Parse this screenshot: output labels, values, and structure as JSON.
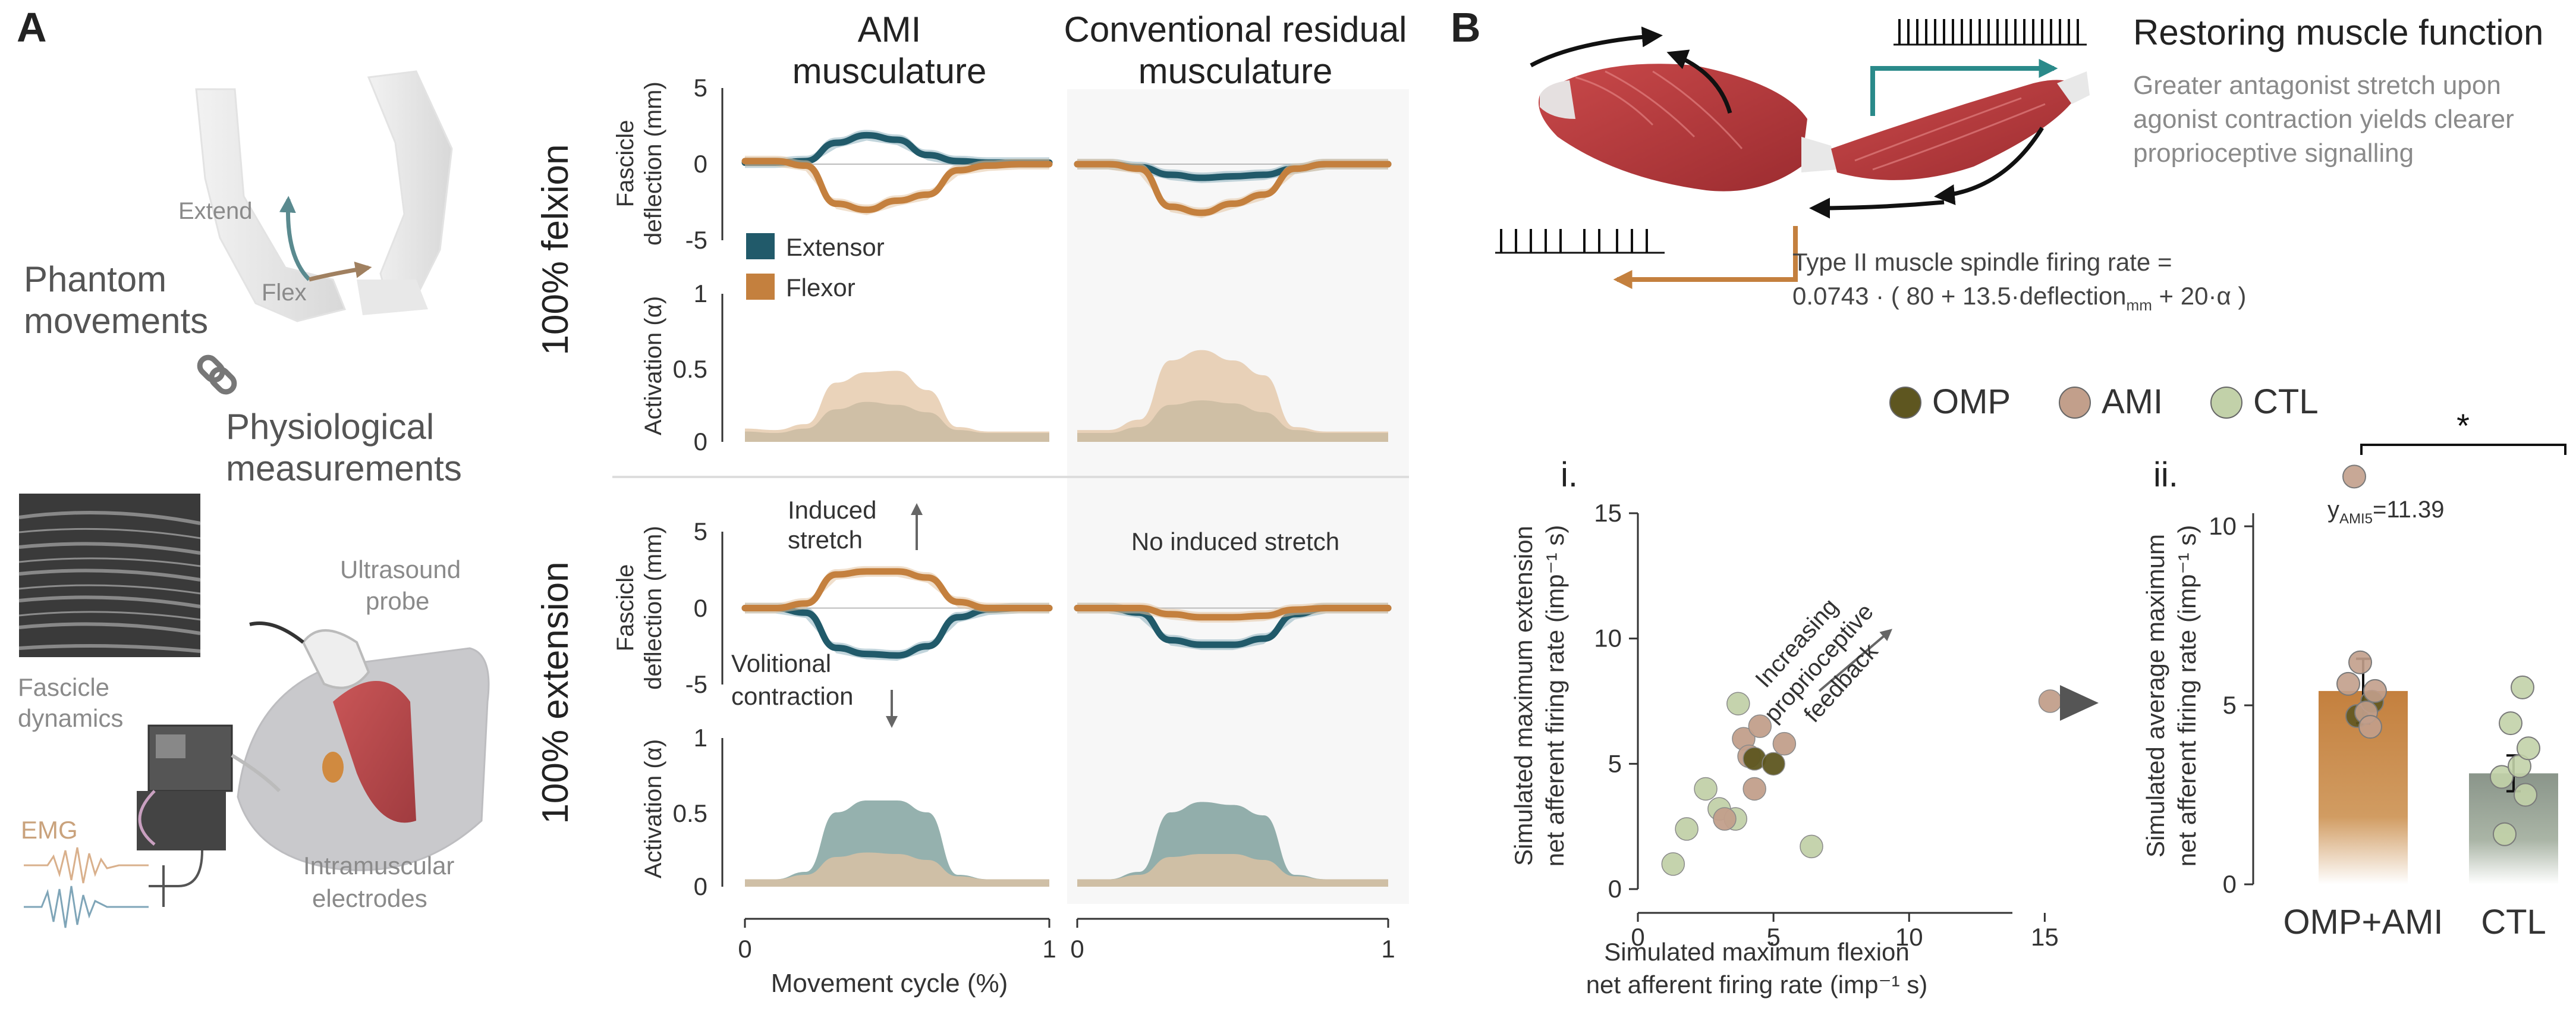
{
  "panel_a": {
    "letter": "A",
    "extend": "Extend",
    "flex": "Flex",
    "phantom": [
      "Phantom",
      "movements"
    ],
    "physio": [
      "Physiological",
      "measurements"
    ],
    "ultrasound_probe": [
      "Ultrasound",
      "probe"
    ],
    "fascicle_dynamics": [
      "Fascicle",
      "dynamics"
    ],
    "emg": "EMG",
    "intramuscular": [
      "Intramuscular",
      "electrodes"
    ],
    "col_ami": [
      "AMI",
      "musculature"
    ],
    "col_conv": [
      "Conventional residual",
      "musculature"
    ],
    "row_flexion": "100% felxion",
    "row_extension": "100% extension",
    "ylabel_deflection": [
      "Fascicle",
      "deflection (mm)"
    ],
    "ylabel_activation": "Activation (α)",
    "legend_extensor": "Extensor",
    "legend_flexor": "Flexor",
    "induced_stretch": [
      "Induced",
      "stretch"
    ],
    "volitional": [
      "Volitional",
      "contraction"
    ],
    "no_induced": "No induced stretch",
    "xlabel": "Movement cycle (%)",
    "x_ticks": [
      "0",
      "1"
    ],
    "defl_ticks": [
      "5",
      "0",
      "-5"
    ],
    "act_ticks": [
      "1",
      "0.5",
      "0"
    ]
  },
  "panel_b": {
    "letter": "B",
    "title": "Restoring muscle function",
    "subtitle": [
      "Greater antagonist stretch upon",
      "agonist contraction yields clearer",
      "proprioceptive signalling"
    ],
    "formula_line1": "Type II muscle spindle firing rate =",
    "formula_line2_a": "0.0743 · ( 80 + 13.5·deflection",
    "formula_sub": "mm",
    "formula_line2_b": " + 20·α )",
    "legend": [
      {
        "label": "OMP",
        "color": "#5e5620"
      },
      {
        "label": "AMI",
        "color": "#c29f8b"
      },
      {
        "label": "CTL",
        "color": "#c2d1a9"
      }
    ],
    "scatter_label": "i.",
    "bar_label": "ii.",
    "arrow_text": [
      "Increasing",
      "proprioceptive",
      "feedback"
    ],
    "scatter_xlabel": [
      "Simulated maximum flexion",
      "net afferent firing rate (imp⁻¹ s)"
    ],
    "scatter_ylabel": [
      "Simulated maximum extension",
      "net afferent firing rate (imp⁻¹ s)"
    ],
    "bar_ylabel": [
      "Simulated average maximum",
      "net afferent firing rate (imp⁻¹ s)"
    ],
    "outlier_label_a": "y",
    "outlier_label_sub": "AMI5",
    "outlier_label_b": "=11.39",
    "significance": "*"
  },
  "colors": {
    "extensor": "#215a6a",
    "flexor": "#c4803e",
    "extensor_band": "#8fb3c0",
    "flexor_band": "#e3c4a3",
    "omp": "#5e5620",
    "ami": "#c29f8b",
    "ctl": "#c2d1a9",
    "muscle": "#b83a3c"
  },
  "chart_data": [
    {
      "type": "line",
      "panel": "AMI musculature, 100% felxion",
      "x": [
        0,
        0.1,
        0.2,
        0.3,
        0.4,
        0.5,
        0.6,
        0.7,
        0.8,
        0.9,
        1.0
      ],
      "series": [
        {
          "name": "Extensor",
          "deflection_mm": [
            0.1,
            0.1,
            0.2,
            1.4,
            1.9,
            1.6,
            0.6,
            0.2,
            0.1,
            0.1,
            0.1
          ],
          "activation": [
            0.07,
            0.06,
            0.09,
            0.22,
            0.27,
            0.25,
            0.2,
            0.08,
            0.06,
            0.06,
            0.06
          ]
        },
        {
          "name": "Flexor",
          "deflection_mm": [
            0.2,
            0.2,
            -0.1,
            -2.6,
            -3.0,
            -2.4,
            -2.0,
            -0.4,
            -0.1,
            0.0,
            0.0
          ],
          "activation": [
            0.09,
            0.08,
            0.12,
            0.4,
            0.47,
            0.48,
            0.35,
            0.1,
            0.07,
            0.07,
            0.07
          ]
        }
      ],
      "ylim_deflection": [
        -5,
        5
      ],
      "ylim_activation": [
        0,
        1
      ]
    },
    {
      "type": "line",
      "panel": "Conventional residual musculature, 100% felxion",
      "x": [
        0,
        0.1,
        0.2,
        0.3,
        0.4,
        0.5,
        0.6,
        0.7,
        0.8,
        0.9,
        1.0
      ],
      "series": [
        {
          "name": "Extensor",
          "deflection_mm": [
            0.0,
            0.0,
            -0.2,
            -0.7,
            -0.9,
            -0.8,
            -0.7,
            -0.3,
            0.0,
            0.0,
            0.0
          ],
          "activation": [
            0.06,
            0.06,
            0.1,
            0.25,
            0.28,
            0.26,
            0.2,
            0.08,
            0.06,
            0.06,
            0.06
          ]
        },
        {
          "name": "Flexor",
          "deflection_mm": [
            0.0,
            0.0,
            -0.3,
            -2.8,
            -3.2,
            -2.6,
            -2.0,
            -0.3,
            0.0,
            0.0,
            0.0
          ],
          "activation": [
            0.08,
            0.08,
            0.15,
            0.55,
            0.62,
            0.55,
            0.45,
            0.1,
            0.07,
            0.07,
            0.07
          ]
        }
      ],
      "ylim_deflection": [
        -5,
        5
      ],
      "ylim_activation": [
        0,
        1
      ]
    },
    {
      "type": "line",
      "panel": "AMI musculature, 100% extension",
      "x": [
        0,
        0.1,
        0.2,
        0.3,
        0.4,
        0.5,
        0.6,
        0.7,
        0.8,
        0.9,
        1.0
      ],
      "series": [
        {
          "name": "Extensor",
          "deflection_mm": [
            0.0,
            0.0,
            -0.3,
            -2.6,
            -3.0,
            -3.1,
            -2.5,
            -0.6,
            -0.1,
            0.0,
            0.0
          ],
          "activation": [
            0.05,
            0.05,
            0.1,
            0.5,
            0.58,
            0.58,
            0.5,
            0.08,
            0.05,
            0.05,
            0.05
          ]
        },
        {
          "name": "Flexor",
          "deflection_mm": [
            0.0,
            0.0,
            0.3,
            2.2,
            2.4,
            2.4,
            2.0,
            0.4,
            0.0,
            0.0,
            0.0
          ],
          "activation": [
            0.05,
            0.05,
            0.08,
            0.2,
            0.23,
            0.22,
            0.18,
            0.07,
            0.05,
            0.05,
            0.05
          ]
        }
      ],
      "ylim_deflection": [
        -5,
        5
      ],
      "ylim_activation": [
        0,
        1
      ]
    },
    {
      "type": "line",
      "panel": "Conventional residual musculature, 100% extension",
      "x": [
        0,
        0.1,
        0.2,
        0.3,
        0.4,
        0.5,
        0.6,
        0.7,
        0.8,
        0.9,
        1.0
      ],
      "series": [
        {
          "name": "Extensor",
          "deflection_mm": [
            0.0,
            0.0,
            -0.3,
            -2.1,
            -2.4,
            -2.4,
            -2.0,
            -0.4,
            0.0,
            0.0,
            0.0
          ],
          "activation": [
            0.05,
            0.05,
            0.1,
            0.5,
            0.57,
            0.55,
            0.48,
            0.08,
            0.05,
            0.05,
            0.05
          ]
        },
        {
          "name": "Flexor",
          "deflection_mm": [
            0.0,
            0.0,
            0.0,
            -0.4,
            -0.6,
            -0.6,
            -0.5,
            -0.1,
            0.0,
            0.0,
            0.0
          ],
          "activation": [
            0.05,
            0.05,
            0.08,
            0.2,
            0.22,
            0.22,
            0.18,
            0.07,
            0.05,
            0.05,
            0.05
          ]
        }
      ],
      "ylim_deflection": [
        -5,
        5
      ],
      "ylim_activation": [
        0,
        1
      ]
    },
    {
      "type": "scatter",
      "panel": "i.",
      "xlabel": "Simulated maximum flexion net afferent firing rate (imp⁻¹ s)",
      "ylabel": "Simulated maximum extension net afferent firing rate (imp⁻¹ s)",
      "xlim": [
        0,
        16
      ],
      "ylim": [
        0,
        15
      ],
      "x_ticks": [
        0,
        5,
        10,
        15
      ],
      "y_ticks": [
        0,
        5,
        10,
        15
      ],
      "series": [
        {
          "name": "OMP",
          "points": [
            [
              4.3,
              5.2
            ],
            [
              5.0,
              5.0
            ]
          ]
        },
        {
          "name": "AMI",
          "points": [
            [
              3.9,
              6.0
            ],
            [
              4.5,
              6.5
            ],
            [
              5.4,
              5.8
            ],
            [
              4.1,
              5.3
            ],
            [
              4.3,
              4.0
            ],
            [
              3.2,
              2.8
            ],
            [
              15.2,
              7.5
            ]
          ]
        },
        {
          "name": "CTL",
          "points": [
            [
              1.3,
              1.0
            ],
            [
              1.8,
              2.4
            ],
            [
              2.5,
              4.0
            ],
            [
              3.0,
              3.2
            ],
            [
              3.6,
              2.8
            ],
            [
              3.7,
              7.4
            ],
            [
              6.4,
              1.7
            ]
          ]
        }
      ]
    },
    {
      "type": "bar",
      "panel": "ii.",
      "categories": [
        "OMP+AMI",
        "CTL"
      ],
      "values": [
        5.4,
        3.1
      ],
      "error": [
        0.9,
        0.5
      ],
      "ylim": [
        0,
        12
      ],
      "y_ticks": [
        0,
        5,
        10
      ],
      "points": {
        "OMP+AMI": [
          4.7,
          5.1,
          5.6,
          4.8,
          5.4,
          6.2,
          4.4,
          11.39
        ],
        "CTL": [
          1.4,
          2.5,
          3.0,
          3.3,
          3.8,
          4.5,
          5.5
        ]
      },
      "outlier": {
        "label": "AMI5",
        "value": 11.39
      },
      "significance": "*"
    }
  ]
}
